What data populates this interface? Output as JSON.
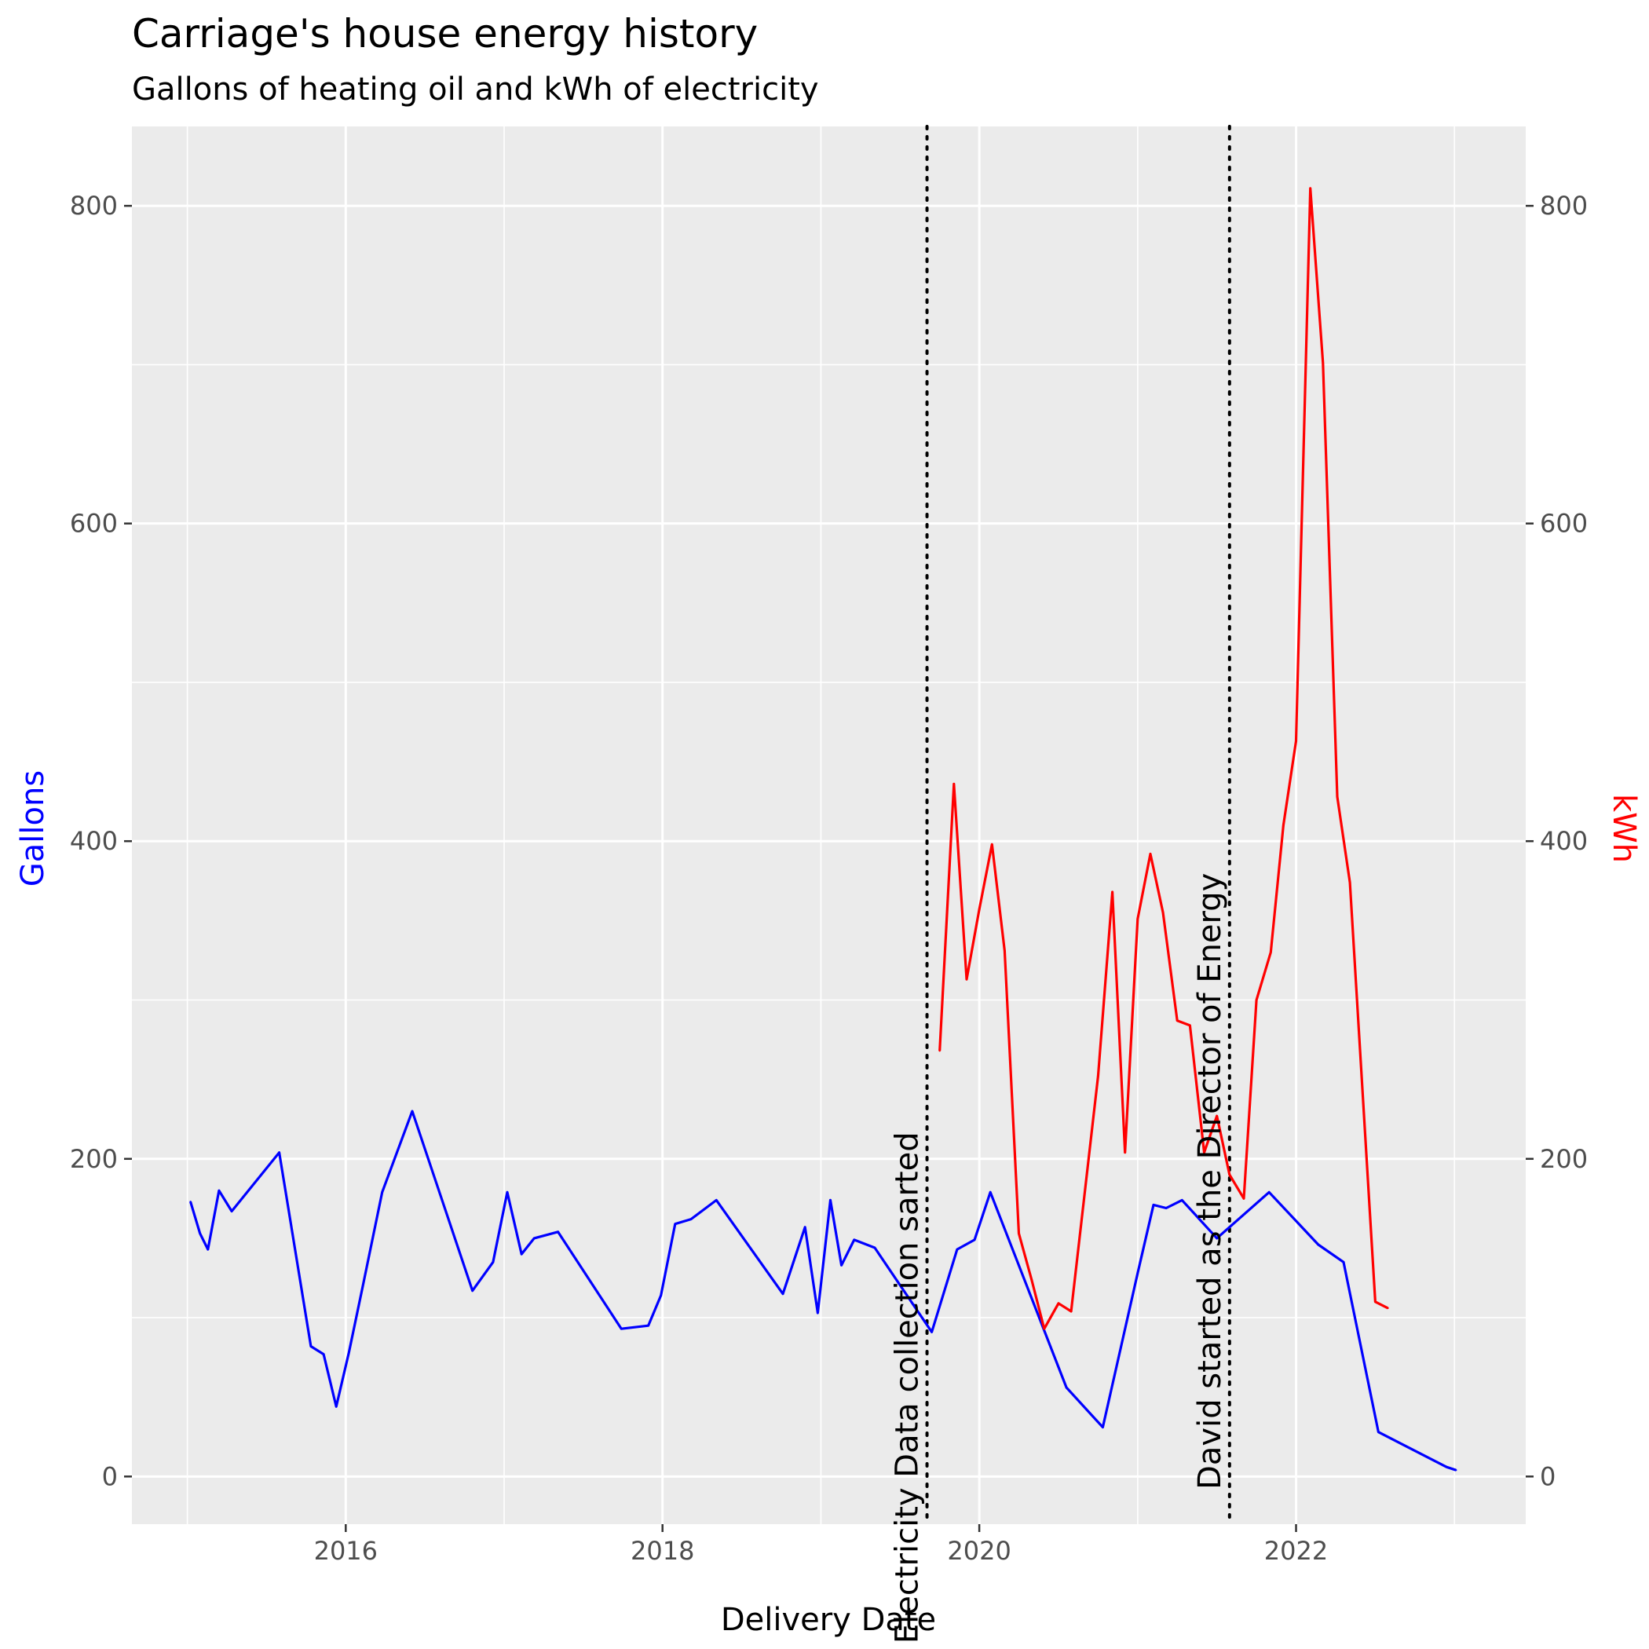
{
  "chart_data": {
    "type": "line",
    "title": "Carriage's house energy history",
    "subtitle": "Gallons of heating oil and kWh of electricity",
    "xlabel": "Delivery Date",
    "ylabel_left": "Gallons",
    "ylabel_right": "kWh",
    "xlim": [
      2014.65,
      2023.45
    ],
    "ylim": [
      -30,
      850
    ],
    "x_ticks": [
      2016,
      2018,
      2020,
      2022
    ],
    "y_ticks": [
      0,
      200,
      400,
      600,
      800
    ],
    "grid": true,
    "colors": {
      "gallons": "#0000ff",
      "kwh": "#ff0000",
      "panel": "#ebebeb",
      "grid": "#ffffff",
      "axis_text": "#4d4d4d"
    },
    "annotations": [
      {
        "x": 2019.67,
        "label": "Electricity Data collection sarted"
      },
      {
        "x": 2021.58,
        "label": "David started as the Director of Energy"
      }
    ],
    "series": [
      {
        "name": "Gallons",
        "axis": "left",
        "color": "#0000ff",
        "points": [
          [
            2015.02,
            173
          ],
          [
            2015.08,
            153
          ],
          [
            2015.13,
            143
          ],
          [
            2015.2,
            180
          ],
          [
            2015.28,
            167
          ],
          [
            2015.58,
            204
          ],
          [
            2015.78,
            82
          ],
          [
            2015.86,
            77
          ],
          [
            2015.94,
            44
          ],
          [
            2016.02,
            78
          ],
          [
            2016.11,
            121
          ],
          [
            2016.23,
            179
          ],
          [
            2016.42,
            230
          ],
          [
            2016.8,
            117
          ],
          [
            2016.93,
            135
          ],
          [
            2017.02,
            179
          ],
          [
            2017.11,
            140
          ],
          [
            2017.19,
            150
          ],
          [
            2017.34,
            154
          ],
          [
            2017.74,
            93
          ],
          [
            2017.91,
            95
          ],
          [
            2017.99,
            114
          ],
          [
            2018.08,
            159
          ],
          [
            2018.18,
            162
          ],
          [
            2018.34,
            174
          ],
          [
            2018.76,
            115
          ],
          [
            2018.9,
            157
          ],
          [
            2018.98,
            103
          ],
          [
            2019.06,
            174
          ],
          [
            2019.13,
            133
          ],
          [
            2019.21,
            149
          ],
          [
            2019.34,
            144
          ],
          [
            2019.7,
            91
          ],
          [
            2019.86,
            143
          ],
          [
            2019.97,
            149
          ],
          [
            2020.07,
            179
          ],
          [
            2020.55,
            56
          ],
          [
            2020.78,
            31
          ],
          [
            2021.0,
            128
          ],
          [
            2021.1,
            171
          ],
          [
            2021.18,
            169
          ],
          [
            2021.28,
            174
          ],
          [
            2021.5,
            150
          ],
          [
            2021.83,
            179
          ],
          [
            2022.14,
            146
          ],
          [
            2022.3,
            135
          ],
          [
            2022.52,
            28
          ],
          [
            2022.95,
            6
          ],
          [
            2023.01,
            4
          ]
        ]
      },
      {
        "name": "kWh",
        "axis": "right",
        "color": "#ff0000",
        "points": [
          [
            2019.75,
            268
          ],
          [
            2019.84,
            436
          ],
          [
            2019.92,
            313
          ],
          [
            2020.0,
            357
          ],
          [
            2020.08,
            398
          ],
          [
            2020.16,
            331
          ],
          [
            2020.25,
            153
          ],
          [
            2020.33,
            124
          ],
          [
            2020.41,
            93
          ],
          [
            2020.5,
            109
          ],
          [
            2020.58,
            104
          ],
          [
            2020.75,
            252
          ],
          [
            2020.84,
            368
          ],
          [
            2020.92,
            204
          ],
          [
            2021.0,
            351
          ],
          [
            2021.08,
            392
          ],
          [
            2021.16,
            355
          ],
          [
            2021.25,
            287
          ],
          [
            2021.33,
            284
          ],
          [
            2021.42,
            204
          ],
          [
            2021.5,
            227
          ],
          [
            2021.58,
            190
          ],
          [
            2021.67,
            175
          ],
          [
            2021.75,
            300
          ],
          [
            2021.84,
            330
          ],
          [
            2021.92,
            410
          ],
          [
            2022.0,
            463
          ],
          [
            2022.09,
            811
          ],
          [
            2022.17,
            701
          ],
          [
            2022.26,
            428
          ],
          [
            2022.34,
            374
          ],
          [
            2022.5,
            110
          ],
          [
            2022.58,
            106
          ]
        ]
      }
    ]
  }
}
